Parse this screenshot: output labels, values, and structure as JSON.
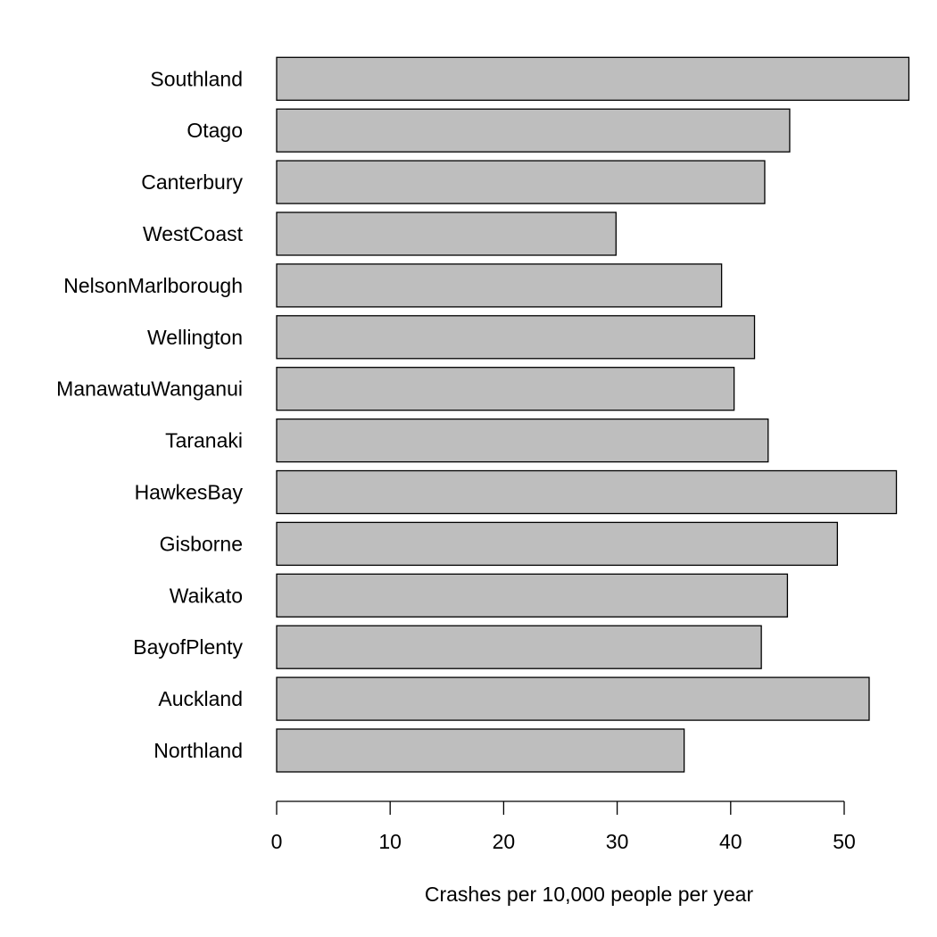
{
  "chart_data": {
    "type": "bar",
    "orientation": "horizontal",
    "title": "",
    "xlabel": "Crashes per 10,000 people per year",
    "ylabel": "",
    "xlim": [
      0,
      56
    ],
    "xticks": [
      0,
      10,
      20,
      30,
      40,
      50
    ],
    "grid": false,
    "legend": "none",
    "bar_color": "#bebebe",
    "categories": [
      "Northland",
      "Auckland",
      "BayofPlenty",
      "Waikato",
      "Gisborne",
      "HawkesBay",
      "Taranaki",
      "ManawatuWanganui",
      "Wellington",
      "NelsonMarlborough",
      "WestCoast",
      "Canterbury",
      "Otago",
      "Southland"
    ],
    "values": [
      35.9,
      52.2,
      42.7,
      45.0,
      49.4,
      54.6,
      43.3,
      40.3,
      42.1,
      39.2,
      29.9,
      43.0,
      45.2,
      55.7
    ]
  }
}
